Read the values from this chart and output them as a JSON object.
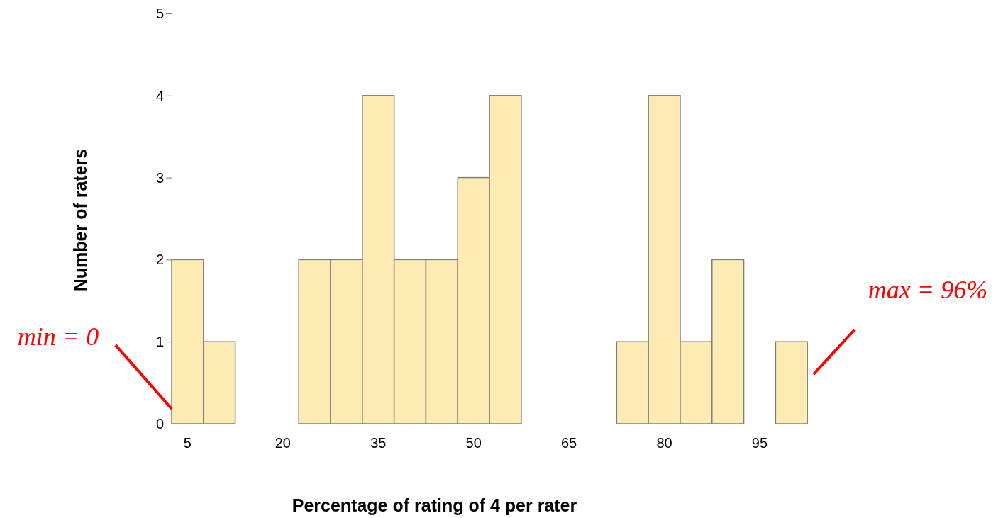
{
  "chart_data": {
    "type": "bar",
    "xlabel": "Percentage of rating of 4 per rater",
    "ylabel": "Number of raters",
    "categories": [
      "5",
      null,
      null,
      "20",
      null,
      null,
      "35",
      null,
      null,
      "50",
      null,
      null,
      "65",
      null,
      null,
      "80",
      null,
      null,
      "95",
      null,
      null
    ],
    "values": [
      2,
      1,
      0,
      0,
      2,
      2,
      4,
      2,
      2,
      3,
      4,
      0,
      0,
      0,
      1,
      4,
      1,
      2,
      0,
      1,
      0
    ],
    "color": "#fdebb3",
    "ylim": [
      0,
      5
    ],
    "yticks": [
      0,
      1,
      2,
      3,
      4,
      5
    ],
    "grid": false,
    "annotations": [
      "min = 0",
      "max = 96%"
    ]
  }
}
